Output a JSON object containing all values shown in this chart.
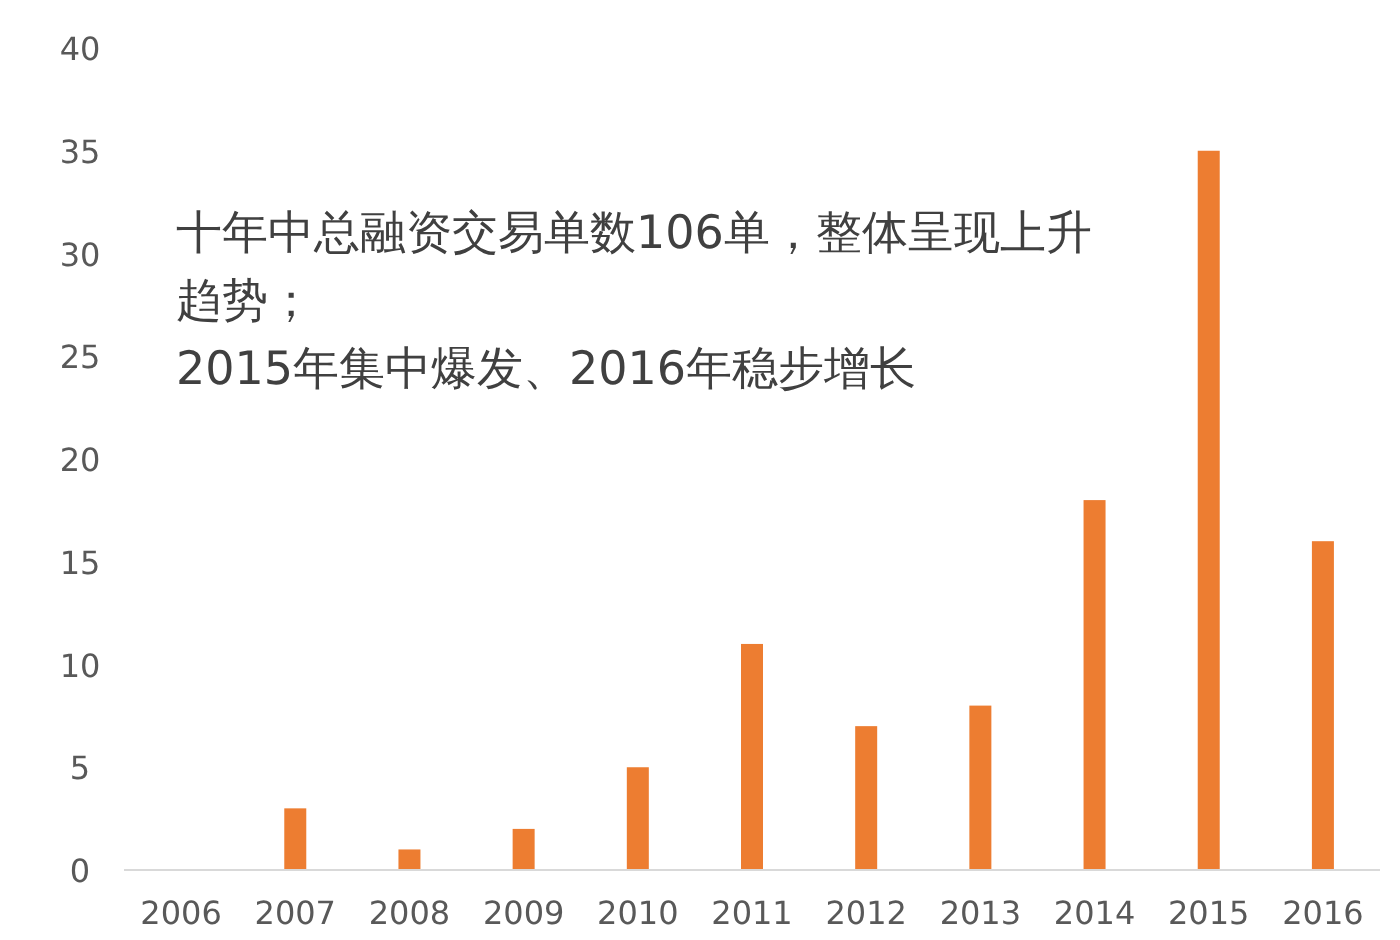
{
  "chart_data": {
    "type": "bar",
    "categories": [
      "2006",
      "2007",
      "2008",
      "2009",
      "2010",
      "2011",
      "2012",
      "2013",
      "2014",
      "2015",
      "2016"
    ],
    "values": [
      0,
      3,
      1,
      2,
      5,
      11,
      7,
      8,
      18,
      35,
      16
    ],
    "color": "#ed7d31",
    "ylim": [
      0,
      40
    ],
    "yticks": [
      0,
      5,
      10,
      15,
      20,
      25,
      30,
      35,
      40
    ],
    "annotations": [
      "十年中总融资交易单数106单，整体呈现上升趋势；",
      "2015年集中爆发、2016年稳步增长"
    ]
  }
}
